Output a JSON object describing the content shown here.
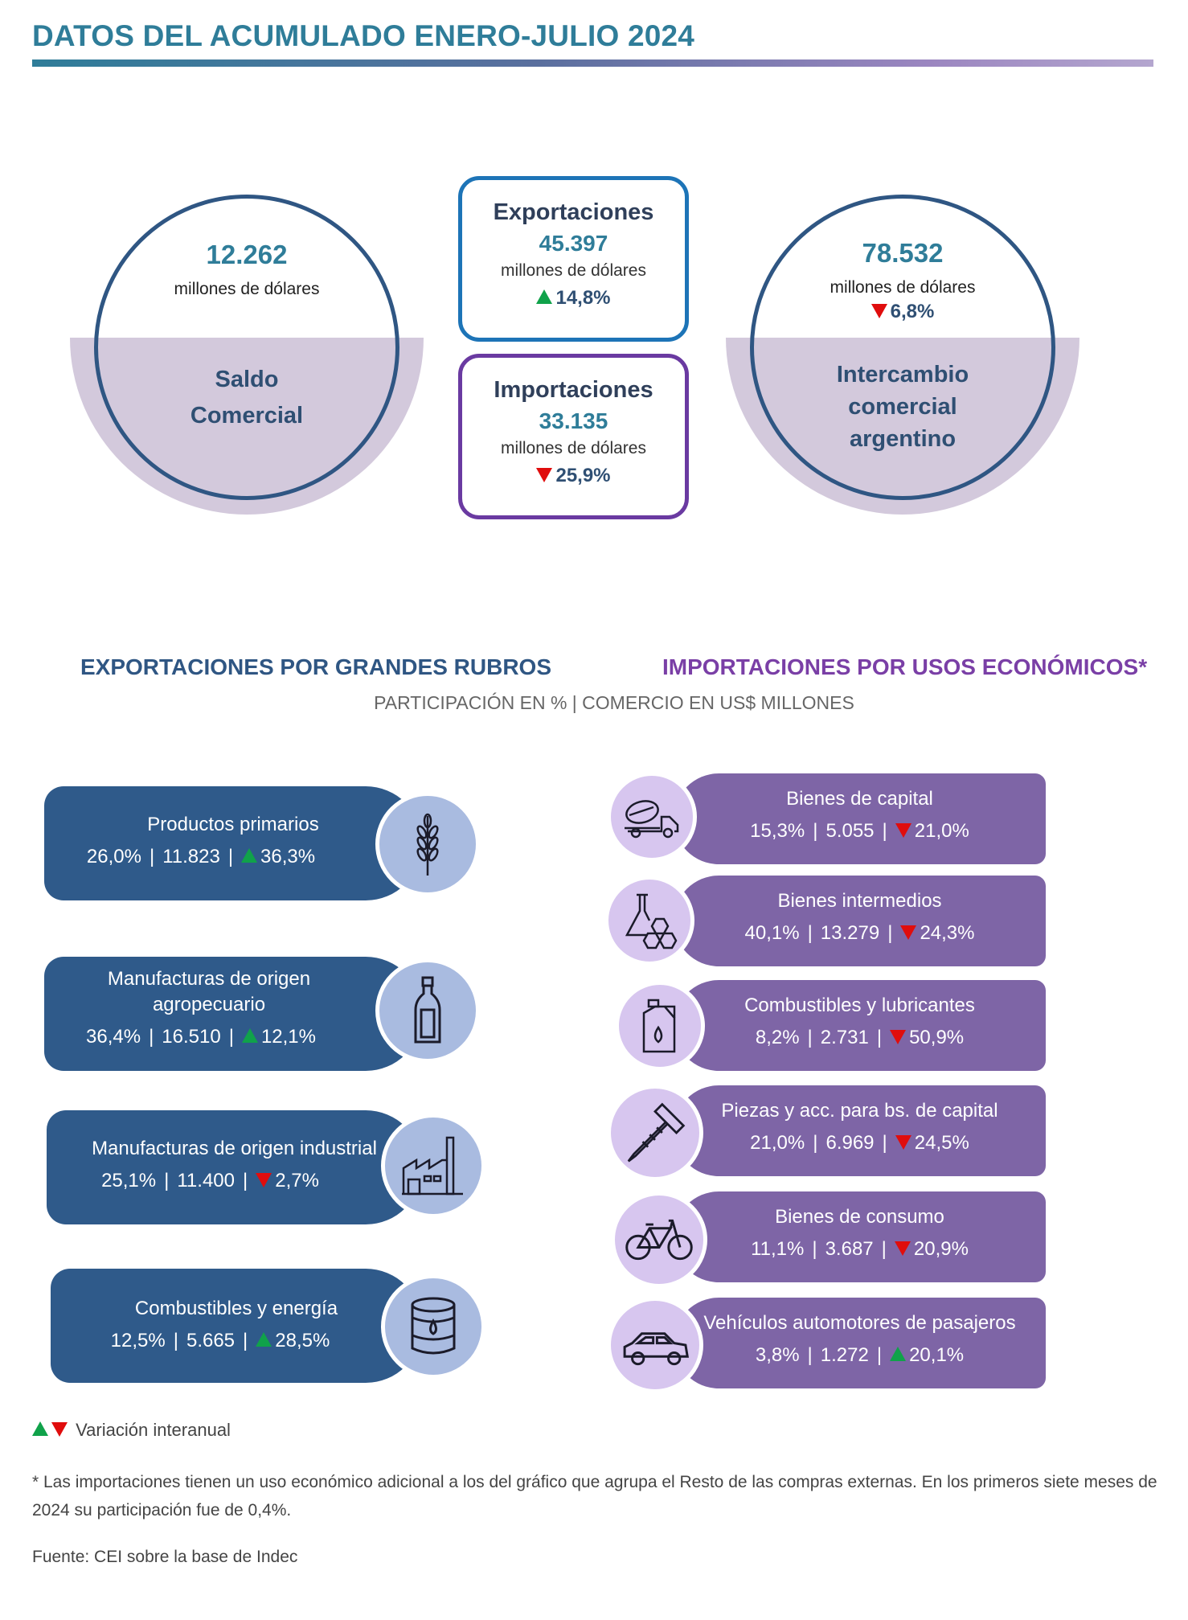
{
  "title": "DATOS DEL ACUMULADO ENERO-JULIO 2024",
  "saldo": {
    "value": "12.262",
    "unit": "millones de dólares",
    "label_line1": "Saldo",
    "label_line2": "Comercial"
  },
  "exportaciones": {
    "title": "Exportaciones",
    "value": "45.397",
    "unit": "millones de dólares",
    "variation": "14,8%",
    "direction": "up"
  },
  "importaciones": {
    "title": "Importaciones",
    "value": "33.135",
    "unit": "millones de dólares",
    "variation": "25,9%",
    "direction": "down"
  },
  "intercambio": {
    "value": "78.532",
    "unit": "millones de dólares",
    "variation": "6,8%",
    "direction": "down",
    "label_line1": "Intercambio",
    "label_line2": "comercial",
    "label_line3": "argentino"
  },
  "sections": {
    "exports_title": "EXPORTACIONES POR GRANDES RUBROS",
    "imports_title": "IMPORTACIONES POR USOS ECONÓMICOS*",
    "subtitle": "PARTICIPACIÓN EN % | COMERCIO EN US$ MILLONES"
  },
  "exports": [
    {
      "name": "Productos primarios",
      "name2": "",
      "share": "26,0%",
      "value": "11.823",
      "variation": "36,3%",
      "direction": "up",
      "icon": "wheat-icon"
    },
    {
      "name": "Manufacturas de origen",
      "name2": "agropecuario",
      "share": "36,4%",
      "value": "16.510",
      "variation": "12,1%",
      "direction": "up",
      "icon": "bottle-icon"
    },
    {
      "name": "Manufacturas de origen industrial",
      "name2": "",
      "share": "25,1%",
      "value": "11.400",
      "variation": "2,7%",
      "direction": "down",
      "icon": "factory-icon"
    },
    {
      "name": "Combustibles y energía",
      "name2": "",
      "share": "12,5%",
      "value": "5.665",
      "variation": "28,5%",
      "direction": "up",
      "icon": "oil-barrel-icon"
    }
  ],
  "imports": [
    {
      "name": "Bienes de capital",
      "share": "15,3%",
      "value": "5.055",
      "variation": "21,0%",
      "direction": "down",
      "icon": "concrete-truck-icon"
    },
    {
      "name": "Bienes intermedios",
      "share": "40,1%",
      "value": "13.279",
      "variation": "24,3%",
      "direction": "down",
      "icon": "chemistry-flask-icon"
    },
    {
      "name": "Combustibles y lubricantes",
      "share": "8,2%",
      "value": "2.731",
      "variation": "50,9%",
      "direction": "down",
      "icon": "fuel-can-icon"
    },
    {
      "name": "Piezas y acc. para bs. de capital",
      "share": "21,0%",
      "value": "6.969",
      "variation": "24,5%",
      "direction": "down",
      "icon": "screw-icon"
    },
    {
      "name": "Bienes de consumo",
      "share": "11,1%",
      "value": "3.687",
      "variation": "20,9%",
      "direction": "down",
      "icon": "bicycle-icon"
    },
    {
      "name": "Vehículos automotores de pasajeros",
      "share": "3,8%",
      "value": "1.272",
      "variation": "20,1%",
      "direction": "up",
      "icon": "car-icon"
    }
  ],
  "separator": "|",
  "legend": "Variación interanual",
  "note": "* Las importaciones tienen un uso económico adicional a los del gráfico que agrupa el Resto de las compras externas. En los primeros siete meses de 2024 su participación fue de 0,4%.",
  "source": "Fuente: CEI sobre la base de Indec",
  "colors": {
    "title": "#2f7d99",
    "export_pill": "#2f5a8a",
    "import_pill": "#7e65a6",
    "up": "#10a24a",
    "down": "#e00d0d"
  }
}
